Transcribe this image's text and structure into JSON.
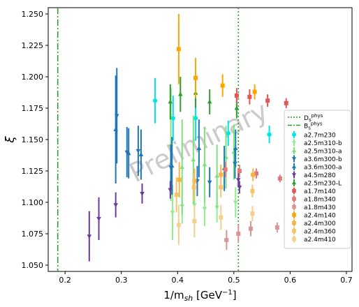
{
  "chart_data": {
    "type": "scatter",
    "xlabel": "1/m_sh [GeV⁻¹]",
    "ylabel": "ξ",
    "xlim": [
      0.17,
      0.71
    ],
    "ylim": [
      1.045,
      1.255
    ],
    "xticks": [
      0.2,
      0.3,
      0.4,
      0.5,
      0.6,
      0.7
    ],
    "xtick_labels": [
      "0.2",
      "0.3",
      "0.4",
      "0.5",
      "0.6",
      "0.7"
    ],
    "yticks": [
      1.05,
      1.075,
      1.1,
      1.125,
      1.15,
      1.175,
      1.2,
      1.225,
      1.25
    ],
    "ytick_labels": [
      "1.050",
      "1.075",
      "1.100",
      "1.125",
      "1.150",
      "1.175",
      "1.200",
      "1.225",
      "1.250"
    ],
    "grid": false,
    "legend_position": "right",
    "watermark": "Preliminary",
    "vlines": [
      {
        "name": "D_s^phys",
        "x": 0.508,
        "color": "#2ca02c",
        "style": "dotted"
      },
      {
        "name": "B_s^phys",
        "x": 0.187,
        "color": "#2ca02c",
        "style": "dashdot"
      }
    ],
    "series": [
      {
        "name": "a2.7m230",
        "color": "#00e5e5",
        "marker": "hexagon",
        "points": [
          [
            0.36,
            1.181,
            0.018
          ],
          [
            0.392,
            1.167,
            0.018
          ],
          [
            0.432,
            1.167,
            0.018
          ],
          [
            0.49,
            1.155,
            0.01
          ],
          [
            0.563,
            1.154,
            0.007
          ]
        ]
      },
      {
        "name": "a2.5m310-b",
        "color": "#90ee90",
        "marker": "tri_down",
        "points": [
          [
            0.391,
            1.092,
            0.022
          ],
          [
            0.408,
            1.097,
            0.014
          ],
          [
            0.43,
            1.098,
            0.014
          ],
          [
            0.448,
            1.095,
            0.014
          ],
          [
            0.47,
            1.096,
            0.012
          ],
          [
            0.503,
            1.1,
            0.012
          ]
        ]
      },
      {
        "name": "a2.5m310-a",
        "color": "#7fe07f",
        "marker": "tri_up",
        "points": [
          [
            0.388,
            1.146,
            0.045
          ],
          [
            0.408,
            1.128,
            0.038
          ],
          [
            0.428,
            1.134,
            0.035
          ],
          [
            0.448,
            1.13,
            0.03
          ],
          [
            0.47,
            1.121,
            0.025
          ],
          [
            0.486,
            1.136,
            0.025
          ],
          [
            0.5,
            1.14,
            0.022
          ]
        ]
      },
      {
        "name": "a3.6m300-b",
        "color": "#1f77b4",
        "marker": "tri_down",
        "points": [
          [
            0.292,
            1.169,
            0.038
          ],
          [
            0.31,
            1.14,
            0.02
          ],
          [
            0.33,
            1.141,
            0.02
          ],
          [
            0.388,
            1.128,
            0.018
          ],
          [
            0.435,
            1.117,
            0.012
          ],
          [
            0.457,
            1.116,
            0.012
          ],
          [
            0.502,
            1.131,
            0.012
          ]
        ]
      },
      {
        "name": "a3.6m300-a",
        "color": "#1f77b4",
        "marker": "tri_up",
        "points": [
          [
            0.29,
            1.158,
            0.043
          ],
          [
            0.313,
            1.139,
            0.02
          ],
          [
            0.335,
            1.138,
            0.02
          ],
          [
            0.39,
            1.129,
            0.023
          ],
          [
            0.438,
            1.143,
            0.023
          ],
          [
            0.483,
            1.127,
            0.018
          ],
          [
            0.503,
            1.143,
            0.015
          ]
        ]
      },
      {
        "name": "a4.5m280",
        "color": "#6a3d9a",
        "marker": "tri_down",
        "points": [
          [
            0.243,
            1.073,
            0.02
          ],
          [
            0.26,
            1.087,
            0.017
          ],
          [
            0.29,
            1.098,
            0.01
          ],
          [
            0.337,
            1.107,
            0.008
          ],
          [
            0.387,
            1.11,
            0.007
          ],
          [
            0.508,
            1.118,
            0.006
          ],
          [
            0.51,
            1.112,
            0.005
          ]
        ]
      },
      {
        "name": "a2.5m230-L",
        "color": "#2ca02c",
        "marker": "tri_up",
        "points": [
          [
            0.387,
            1.18,
            0.014
          ],
          [
            0.405,
            1.186,
            0.014
          ],
          [
            0.432,
            1.187,
            0.012
          ],
          [
            0.457,
            1.18,
            0.01
          ],
          [
            0.505,
            1.175,
            0.008
          ]
        ]
      },
      {
        "name": "a1.7m140",
        "color": "#e15759",
        "marker": "square",
        "points": [
          [
            0.505,
            1.185,
            0.006
          ],
          [
            0.528,
            1.184,
            0.006
          ],
          [
            0.56,
            1.181,
            0.005
          ],
          [
            0.593,
            1.179,
            0.004
          ]
        ]
      },
      {
        "name": "a1.8m340",
        "color": "#e07b7b",
        "marker": "square",
        "points": [
          [
            0.485,
            1.126,
            0.006
          ],
          [
            0.51,
            1.125,
            0.005
          ],
          [
            0.54,
            1.123,
            0.004
          ],
          [
            0.582,
            1.119,
            0.003
          ]
        ]
      },
      {
        "name": "a1.8m430",
        "color": "#d99494",
        "marker": "square",
        "points": [
          [
            0.487,
            1.07,
            0.008
          ],
          [
            0.508,
            1.075,
            0.007
          ],
          [
            0.53,
            1.079,
            0.006
          ],
          [
            0.577,
            1.08,
            0.004
          ]
        ]
      },
      {
        "name": "a2.4m140",
        "color": "#ffa500",
        "marker": "square",
        "points": [
          [
            0.402,
            1.222,
            0.028
          ],
          [
            0.432,
            1.199,
            0.016
          ],
          [
            0.48,
            1.193,
            0.009
          ],
          [
            0.537,
            1.188,
            0.006
          ]
        ]
      },
      {
        "name": "a2.4m300",
        "color": "#f5b342",
        "marker": "square",
        "points": [
          [
            0.403,
            1.118,
            0.014
          ],
          [
            0.43,
            1.117,
            0.01
          ],
          [
            0.477,
            1.122,
            0.008
          ],
          [
            0.534,
            1.122,
            0.005
          ]
        ]
      },
      {
        "name": "a2.4m360",
        "color": "#f2c46b",
        "marker": "square",
        "points": [
          [
            0.398,
            1.106,
            0.014
          ],
          [
            0.429,
            1.112,
            0.011
          ],
          [
            0.477,
            1.112,
            0.008
          ],
          [
            0.533,
            1.109,
            0.005
          ]
        ]
      },
      {
        "name": "a2.4m410",
        "color": "#f5cf8e",
        "marker": "square",
        "points": [
          [
            0.402,
            1.082,
            0.016
          ],
          [
            0.43,
            1.085,
            0.013
          ],
          [
            0.477,
            1.088,
            0.01
          ],
          [
            0.533,
            1.091,
            0.006
          ]
        ]
      }
    ]
  }
}
